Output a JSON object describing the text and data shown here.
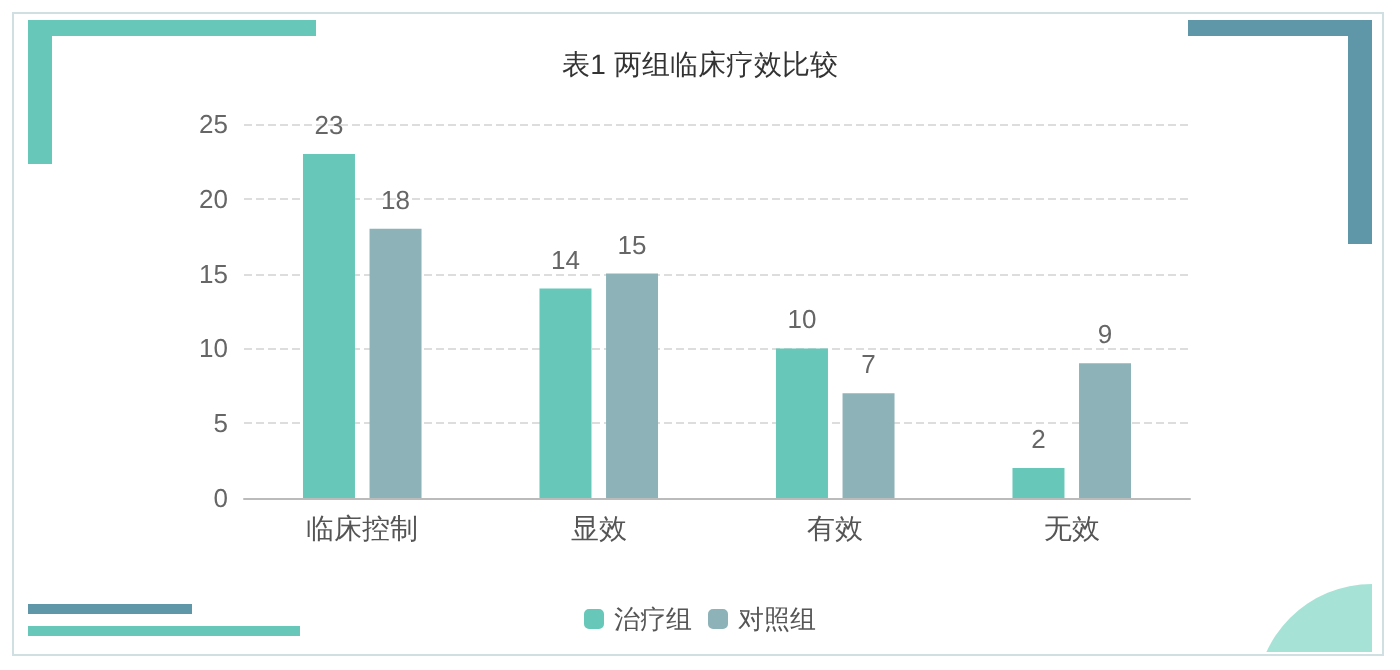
{
  "chart_data": {
    "type": "bar",
    "title": "表1 两组临床疗效比较",
    "categories": [
      "临床控制",
      "显效",
      "有效",
      "无效"
    ],
    "series": [
      {
        "name": "治疗组",
        "color": "#67c8b9",
        "values": [
          23,
          14,
          10,
          2
        ]
      },
      {
        "name": "对照组",
        "color": "#8db3b9",
        "values": [
          18,
          15,
          7,
          9
        ]
      }
    ],
    "ylim": [
      0,
      25
    ],
    "yticks": [
      0,
      5,
      10,
      15,
      20,
      25
    ],
    "grid": "y",
    "legend": "bottom",
    "data_labels": true
  }
}
